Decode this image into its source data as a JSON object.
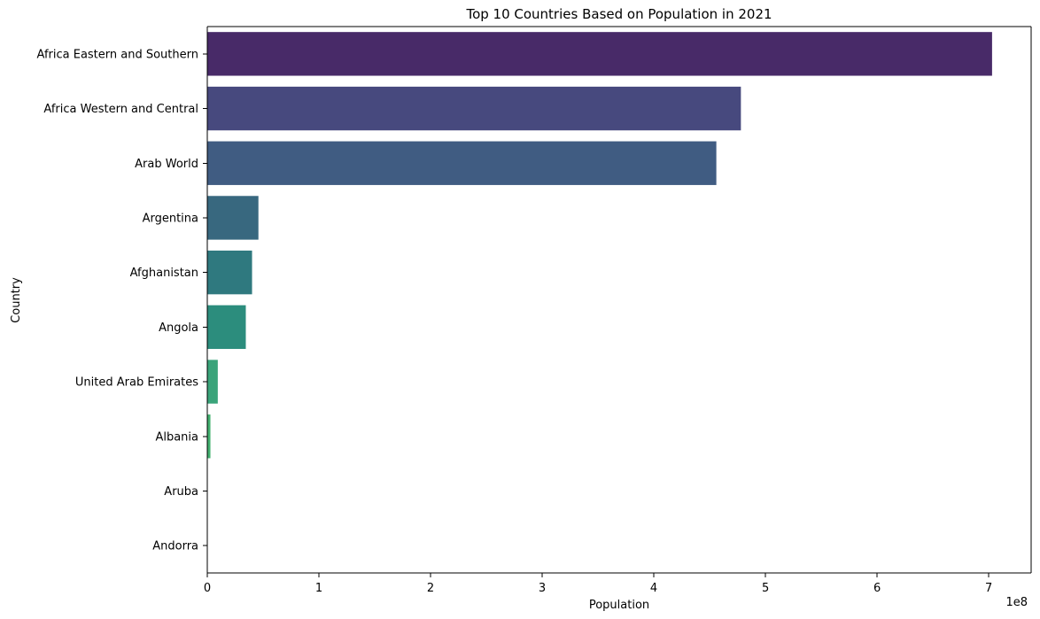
{
  "chart_data": {
    "type": "bar",
    "orientation": "horizontal",
    "title": "Top 10 Countries Based on Population in 2021",
    "xlabel": "Population",
    "ylabel": "Country",
    "x_scale_label": "1e8",
    "x_ticks": [
      0,
      1,
      2,
      3,
      4,
      5,
      6,
      7
    ],
    "xlim": [
      0,
      7.38
    ],
    "categories": [
      "Africa Eastern and Southern",
      "Africa Western and Central",
      "Arab World",
      "Argentina",
      "Afghanistan",
      "Angola",
      "United Arab Emirates",
      "Albania",
      "Aruba",
      "Andorra"
    ],
    "values": [
      7.03,
      4.78,
      4.56,
      0.458,
      0.401,
      0.345,
      0.094,
      0.028,
      0.001,
      0.001
    ],
    "colors": [
      "#482a68",
      "#47497e",
      "#405c82",
      "#38687f",
      "#2f797f",
      "#2c8d7d",
      "#3aa47a",
      "#42b06f",
      "#5cbd63",
      "#8fcf52"
    ],
    "grid": false,
    "legend": false
  }
}
